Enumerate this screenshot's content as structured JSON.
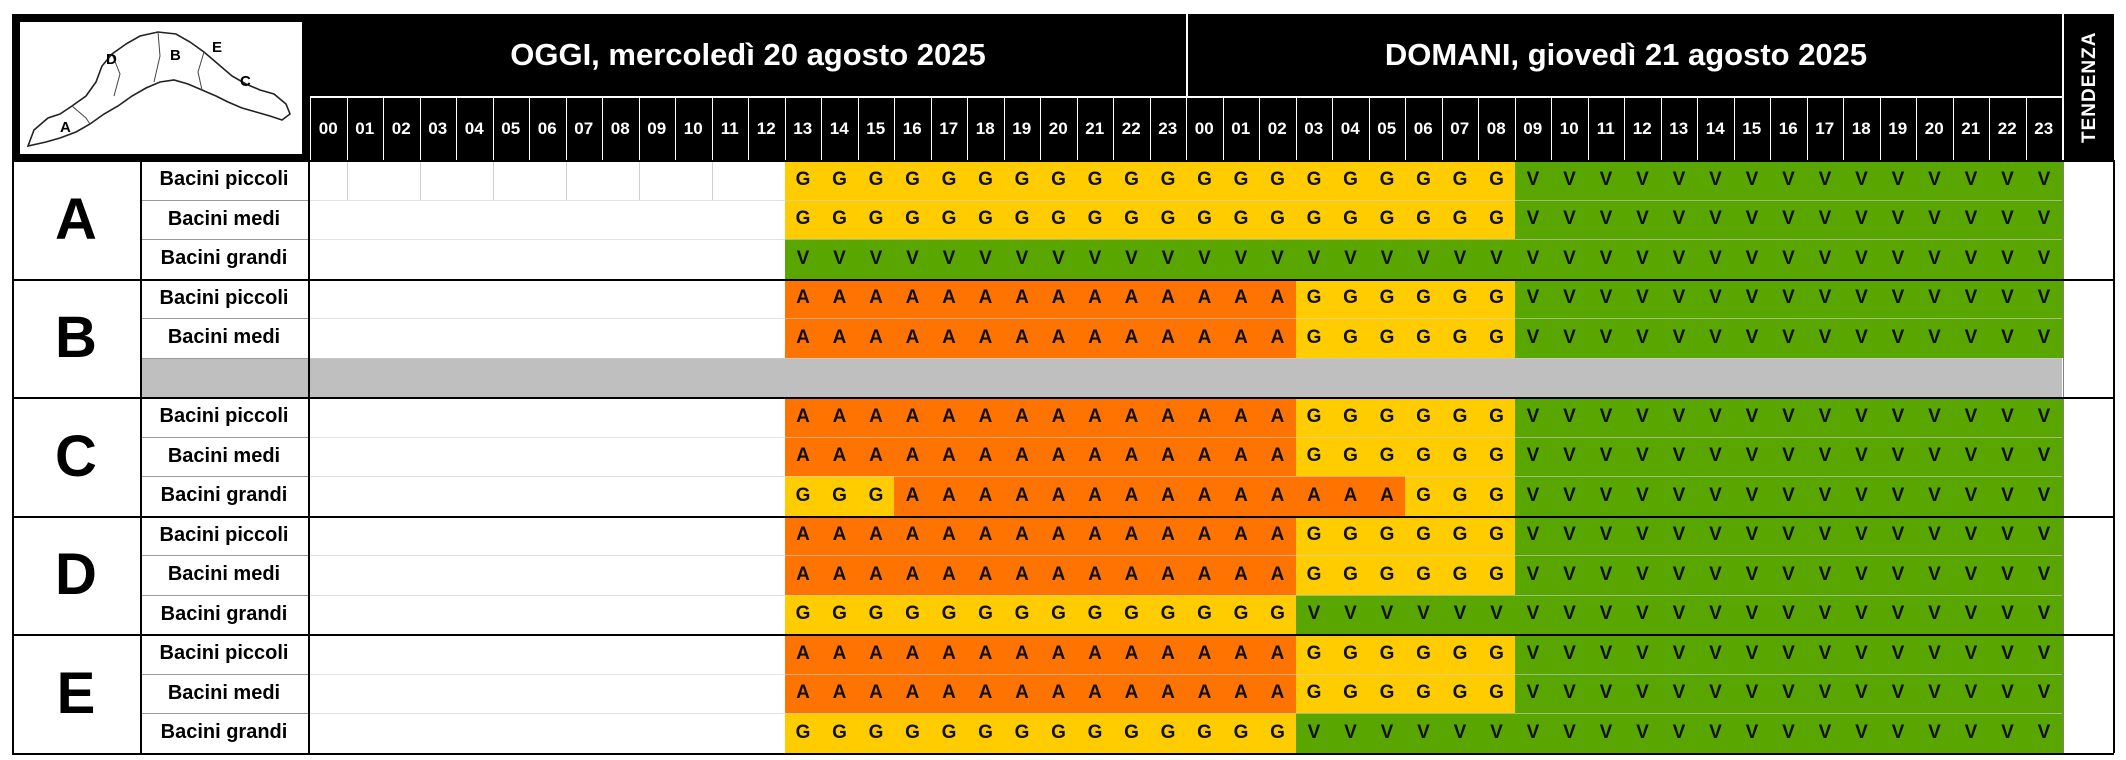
{
  "header": {
    "today_title": "OGGI, mercoledì 20 agosto 2025",
    "tomorrow_title": "DOMANI, giovedì 21 agosto 2025",
    "trend_label": "TENDENZA",
    "hours": [
      "00",
      "01",
      "02",
      "03",
      "04",
      "05",
      "06",
      "07",
      "08",
      "09",
      "10",
      "11",
      "12",
      "13",
      "14",
      "15",
      "16",
      "17",
      "18",
      "19",
      "20",
      "21",
      "22",
      "23"
    ]
  },
  "map": {
    "zone_labels": [
      "A",
      "B",
      "C",
      "D",
      "E"
    ]
  },
  "colors": {
    "G": "#ffcc00",
    "A": "#ff7300",
    "V": "#5aa600",
    "header_bg": "#000000",
    "empty_row": "#bfbfbf"
  },
  "legend_codes": {
    "G": "G",
    "A": "A",
    "V": "V"
  },
  "zones": [
    {
      "zone": "A",
      "rows": [
        {
          "label": "Bacini piccoli",
          "segments": [
            [
              "",
              13
            ],
            [
              "G",
              20
            ],
            [
              "V",
              15
            ]
          ]
        },
        {
          "label": "Bacini medi",
          "segments": [
            [
              "",
              13
            ],
            [
              "G",
              20
            ],
            [
              "V",
              15
            ]
          ]
        },
        {
          "label": "Bacini grandi",
          "segments": [
            [
              "",
              13
            ],
            [
              "V",
              35
            ]
          ]
        }
      ]
    },
    {
      "zone": "B",
      "rows": [
        {
          "label": "Bacini piccoli",
          "segments": [
            [
              "",
              13
            ],
            [
              "A",
              14
            ],
            [
              "G",
              6
            ],
            [
              "V",
              15
            ]
          ]
        },
        {
          "label": "Bacini medi",
          "segments": [
            [
              "",
              13
            ],
            [
              "A",
              14
            ],
            [
              "G",
              6
            ],
            [
              "V",
              15
            ]
          ]
        },
        {
          "label": "",
          "empty": true
        }
      ]
    },
    {
      "zone": "C",
      "rows": [
        {
          "label": "Bacini piccoli",
          "segments": [
            [
              "",
              13
            ],
            [
              "A",
              14
            ],
            [
              "G",
              6
            ],
            [
              "V",
              15
            ]
          ]
        },
        {
          "label": "Bacini medi",
          "segments": [
            [
              "",
              13
            ],
            [
              "A",
              14
            ],
            [
              "G",
              6
            ],
            [
              "V",
              15
            ]
          ]
        },
        {
          "label": "Bacini grandi",
          "segments": [
            [
              "",
              13
            ],
            [
              "G",
              3
            ],
            [
              "A",
              14
            ],
            [
              "G",
              3
            ],
            [
              "V",
              15
            ]
          ]
        }
      ]
    },
    {
      "zone": "D",
      "rows": [
        {
          "label": "Bacini piccoli",
          "segments": [
            [
              "",
              13
            ],
            [
              "A",
              14
            ],
            [
              "G",
              6
            ],
            [
              "V",
              15
            ]
          ]
        },
        {
          "label": "Bacini medi",
          "segments": [
            [
              "",
              13
            ],
            [
              "A",
              14
            ],
            [
              "G",
              6
            ],
            [
              "V",
              15
            ]
          ]
        },
        {
          "label": "Bacini grandi",
          "segments": [
            [
              "",
              13
            ],
            [
              "G",
              14
            ],
            [
              "V",
              21
            ]
          ]
        }
      ]
    },
    {
      "zone": "E",
      "rows": [
        {
          "label": "Bacini piccoli",
          "segments": [
            [
              "",
              13
            ],
            [
              "A",
              14
            ],
            [
              "G",
              6
            ],
            [
              "V",
              15
            ]
          ]
        },
        {
          "label": "Bacini medi",
          "segments": [
            [
              "",
              13
            ],
            [
              "A",
              14
            ],
            [
              "G",
              6
            ],
            [
              "V",
              15
            ]
          ]
        },
        {
          "label": "Bacini grandi",
          "segments": [
            [
              "",
              13
            ],
            [
              "G",
              14
            ],
            [
              "V",
              21
            ]
          ]
        }
      ]
    }
  ]
}
